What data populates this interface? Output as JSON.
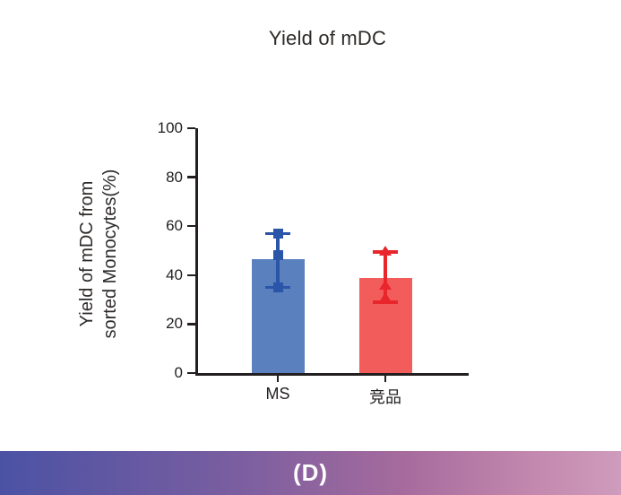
{
  "figure": {
    "title": "Yield of mDC",
    "caption": "(D)"
  },
  "chart_data": {
    "type": "bar",
    "title": "Yield of mDC",
    "ylabel": "Yield of mDC from sorted Monocytes(%)",
    "ylabel_lines": [
      "Yield of mDC from",
      "sorted Monocytes(%)"
    ],
    "xlabel": "",
    "categories": [
      "MS",
      "竞品"
    ],
    "series": [
      {
        "name": "MS",
        "mean": 46.5,
        "error_low": 35,
        "error_high": 57,
        "points": [
          57,
          48,
          35
        ],
        "marker": "square",
        "bar_color": "#5b80be",
        "accent_color": "#2b55a8"
      },
      {
        "name": "竞品",
        "mean": 39,
        "error_low": 29,
        "error_high": 49.5,
        "points": [
          50,
          36,
          31
        ],
        "marker": "triangle",
        "bar_color": "#f25d5c",
        "accent_color": "#e8262b"
      }
    ],
    "ylim": [
      0,
      100
    ],
    "yticks": [
      0,
      20,
      40,
      60,
      80,
      100
    ],
    "grid": false,
    "legend": false,
    "error_bars": "sd"
  },
  "colors": {
    "axis": "#231f20",
    "title_text": "#2d2a28",
    "banner_gradient": [
      "#4b52a4",
      "#7a5ea0",
      "#a66b9d",
      "#c287ad",
      "#cf9cbc"
    ],
    "banner_text": "#ffffff"
  }
}
